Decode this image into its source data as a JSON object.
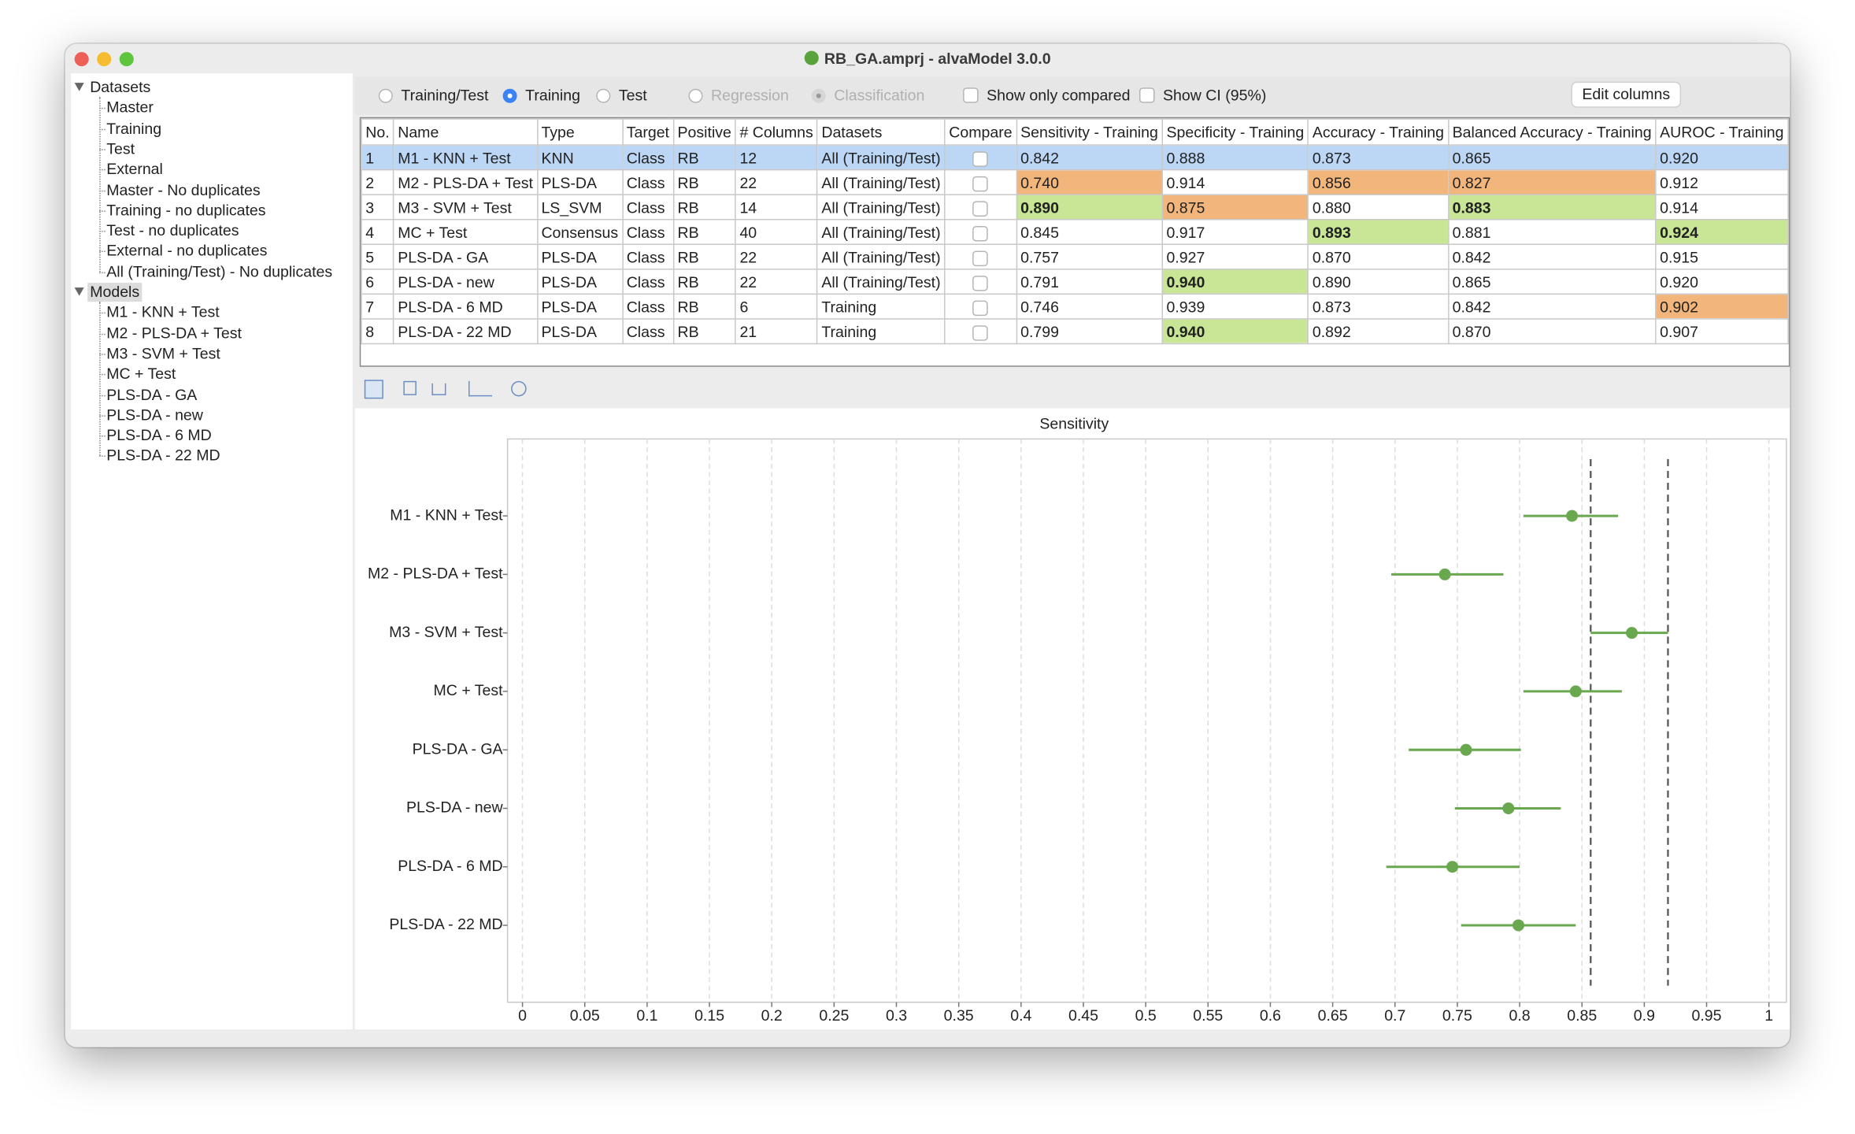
{
  "window": {
    "title": "RB_GA.amprj - alvaModel 3.0.0"
  },
  "sidebar": {
    "groups": [
      {
        "label": "Datasets",
        "items": [
          "Master",
          "Training",
          "Test",
          "External",
          "Master - No duplicates",
          "Training - no duplicates",
          "Test - no duplicates",
          "External - no duplicates",
          "All (Training/Test) - No duplicates"
        ]
      },
      {
        "label": "Models",
        "selected": true,
        "items": [
          "M1 - KNN + Test",
          "M2 - PLS-DA + Test",
          "M3 - SVM +  Test",
          "MC + Test",
          "PLS-DA - GA",
          "PLS-DA - new",
          "PLS-DA - 6 MD",
          "PLS-DA - 22 MD"
        ]
      }
    ]
  },
  "toolbar": {
    "options": [
      {
        "kind": "radio",
        "label": "Training/Test"
      },
      {
        "kind": "radio",
        "label": "Training",
        "checked": true
      },
      {
        "kind": "radio",
        "label": "Test"
      },
      {
        "kind": "radio",
        "label": "Regression",
        "disabled": true
      },
      {
        "kind": "radio",
        "label": "Classification",
        "checked": true,
        "disabled": true
      },
      {
        "kind": "checkbox",
        "label": "Show only compared"
      },
      {
        "kind": "checkbox",
        "label": "Show CI (95%)"
      }
    ],
    "button": "Edit columns"
  },
  "table": {
    "columns": [
      "No.",
      "Name",
      "Type",
      "Target",
      "Positive",
      "# Columns",
      "Datasets",
      "Compare",
      "Sensitivity - Training",
      "Specificity - Training",
      "Accuracy - Training",
      "Balanced Accuracy - Training",
      "AUROC - Training"
    ],
    "rows": [
      {
        "selected": true,
        "cells": [
          "1",
          "M1 - KNN + Test",
          "KNN",
          "Class",
          "RB",
          "12",
          "All (Training/Test)",
          "0.842",
          "0.888",
          "0.873",
          "0.865",
          "0.920"
        ]
      },
      {
        "cells": [
          "2",
          "M2 - PLS-DA + Test",
          "PLS-DA",
          "Class",
          "RB",
          "22",
          "All (Training/Test)",
          {
            "text": "0.740",
            "color": "#f2b57c"
          },
          "0.914",
          {
            "text": "0.856",
            "color": "#f2b57c"
          },
          {
            "text": "0.827",
            "color": "#f2b57c"
          },
          "0.912"
        ]
      },
      {
        "cells": [
          "3",
          "M3 - SVM +  Test",
          "LS_SVM",
          "Class",
          "RB",
          "14",
          "All (Training/Test)",
          {
            "text": "0.890",
            "color": "#c8e695",
            "bold": true
          },
          {
            "text": "0.875",
            "color": "#f2b57c"
          },
          "0.880",
          {
            "text": "0.883",
            "color": "#c8e695",
            "bold": true
          },
          "0.914"
        ]
      },
      {
        "cells": [
          "4",
          "MC + Test",
          "Consensus",
          "Class",
          "RB",
          "40",
          "All (Training/Test)",
          "0.845",
          "0.917",
          {
            "text": "0.893",
            "color": "#c8e695",
            "bold": true
          },
          "0.881",
          {
            "text": "0.924",
            "color": "#c8e695",
            "bold": true
          }
        ]
      },
      {
        "cells": [
          "5",
          "PLS-DA - GA",
          "PLS-DA",
          "Class",
          "RB",
          "22",
          "All (Training/Test)",
          "0.757",
          "0.927",
          "0.870",
          "0.842",
          "0.915"
        ]
      },
      {
        "cells": [
          "6",
          "PLS-DA - new",
          "PLS-DA",
          "Class",
          "RB",
          "22",
          "All (Training/Test)",
          "0.791",
          {
            "text": "0.940",
            "color": "#c8e695",
            "bold": true
          },
          "0.890",
          "0.865",
          "0.920"
        ]
      },
      {
        "cells": [
          "7",
          "PLS-DA - 6 MD",
          "PLS-DA",
          "Class",
          "RB",
          "6",
          "Training",
          "0.746",
          "0.939",
          "0.873",
          "0.842",
          {
            "text": "0.902",
            "color": "#f2b57c"
          }
        ]
      },
      {
        "cells": [
          "8",
          "PLS-DA - 22 MD",
          "PLS-DA",
          "Class",
          "RB",
          "21",
          "Training",
          "0.799",
          {
            "text": "0.940",
            "color": "#c8e695",
            "bold": true
          },
          "0.892",
          "0.870",
          "0.907"
        ]
      }
    ]
  },
  "chart_data": {
    "type": "interval",
    "title": "Sensitivity",
    "categories": [
      "M1 - KNN + Test",
      "M2 - PLS-DA + Test",
      "M3 - SVM +  Test",
      "MC + Test",
      "PLS-DA - GA",
      "PLS-DA - new",
      "PLS-DA - 6 MD",
      "PLS-DA - 22 MD"
    ],
    "values": [
      0.842,
      0.74,
      0.89,
      0.845,
      0.757,
      0.791,
      0.746,
      0.799
    ],
    "lower": [
      0.803,
      0.697,
      0.857,
      0.803,
      0.711,
      0.748,
      0.693,
      0.753
    ],
    "upper": [
      0.879,
      0.787,
      0.919,
      0.882,
      0.801,
      0.833,
      0.8,
      0.845
    ],
    "reference_lines": [
      0.857,
      0.919
    ],
    "xlim": [
      -0.012,
      1.014
    ],
    "xticks": [
      0,
      0.05,
      0.1,
      0.15,
      0.2,
      0.25,
      0.3,
      0.35,
      0.4,
      0.45,
      0.5,
      0.55,
      0.6,
      0.65,
      0.7,
      0.75,
      0.8,
      0.85,
      0.9,
      0.95,
      1
    ],
    "grid": true,
    "color": "#6aa84f"
  }
}
